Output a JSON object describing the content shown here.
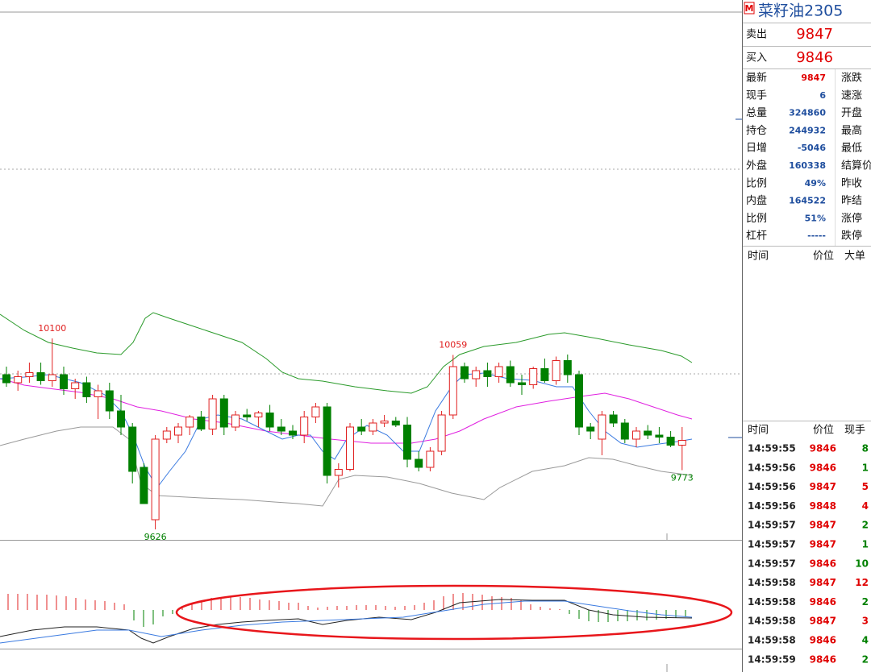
{
  "header": {
    "badge": "M",
    "title": "菜籽油2305"
  },
  "quote": {
    "ask": {
      "label": "卖出",
      "price": "9847"
    },
    "bid": {
      "label": "买入",
      "price": "9846"
    },
    "rows": [
      {
        "label": "最新",
        "value": "9847",
        "label2": "涨跌"
      },
      {
        "label": "现手",
        "value": "6",
        "label2": "速涨"
      },
      {
        "label": "总量",
        "value": "324860",
        "label2": "开盘"
      },
      {
        "label": "持仓",
        "value": "244932",
        "label2": "最高"
      },
      {
        "label": "日增",
        "value": "-5046",
        "label2": "最低"
      },
      {
        "label": "外盘",
        "value": "160338",
        "label2": "结算价"
      },
      {
        "label": "比例",
        "value": "49%",
        "label2": "昨收"
      },
      {
        "label": "内盘",
        "value": "164522",
        "label2": "昨结"
      },
      {
        "label": "比例",
        "value": "51%",
        "label2": "涨停"
      },
      {
        "label": "杠杆",
        "value": "-----",
        "label2": "跌停"
      }
    ]
  },
  "big_orders": {
    "columns": [
      "时间",
      "价位",
      "大单"
    ]
  },
  "trades": {
    "columns": [
      "时间",
      "价位",
      "现手"
    ],
    "rows": [
      {
        "time": "14:59:55",
        "price": "9846",
        "volume": "8",
        "color": "green"
      },
      {
        "time": "14:59:56",
        "price": "9846",
        "volume": "1",
        "color": "green"
      },
      {
        "time": "14:59:56",
        "price": "9847",
        "volume": "5",
        "color": "red"
      },
      {
        "time": "14:59:56",
        "price": "9848",
        "volume": "4",
        "color": "red"
      },
      {
        "time": "14:59:57",
        "price": "9847",
        "volume": "2",
        "color": "green"
      },
      {
        "time": "14:59:57",
        "price": "9847",
        "volume": "1",
        "color": "green"
      },
      {
        "time": "14:59:57",
        "price": "9846",
        "volume": "10",
        "color": "green"
      },
      {
        "time": "14:59:58",
        "price": "9847",
        "volume": "12",
        "color": "red"
      },
      {
        "time": "14:59:58",
        "price": "9846",
        "volume": "2",
        "color": "green"
      },
      {
        "time": "14:59:58",
        "price": "9847",
        "volume": "3",
        "color": "red"
      },
      {
        "time": "14:59:58",
        "price": "9846",
        "volume": "4",
        "color": "green"
      },
      {
        "time": "14:59:59",
        "price": "9846",
        "volume": "2",
        "color": "green"
      }
    ]
  },
  "chart": {
    "ylim": [
      9600,
      10910
    ],
    "candles": [
      [
        10010,
        10030,
        9980,
        9990
      ],
      [
        9990,
        10020,
        9970,
        10005
      ],
      [
        10005,
        10040,
        9990,
        10015
      ],
      [
        10015,
        10040,
        9985,
        9995
      ],
      [
        9995,
        10100,
        9980,
        10010
      ],
      [
        10010,
        10030,
        9960,
        9975
      ],
      [
        9975,
        10000,
        9950,
        9990
      ],
      [
        9990,
        10005,
        9940,
        9955
      ],
      [
        9955,
        9985,
        9900,
        9970
      ],
      [
        9970,
        9990,
        9900,
        9920
      ],
      [
        9920,
        9960,
        9860,
        9880
      ],
      [
        9880,
        9890,
        9740,
        9770
      ],
      [
        9780,
        9790,
        9690,
        9690
      ],
      [
        9650,
        9860,
        9626,
        9850
      ],
      [
        9850,
        9880,
        9840,
        9870
      ],
      [
        9860,
        9890,
        9840,
        9880
      ],
      [
        9880,
        9910,
        9860,
        9905
      ],
      [
        9905,
        9920,
        9870,
        9875
      ],
      [
        9875,
        9960,
        9860,
        9950
      ],
      [
        9950,
        9960,
        9860,
        9880
      ],
      [
        9880,
        9920,
        9870,
        9910
      ],
      [
        9910,
        9925,
        9895,
        9905
      ],
      [
        9905,
        9920,
        9880,
        9915
      ],
      [
        9915,
        9935,
        9870,
        9880
      ],
      [
        9880,
        9900,
        9860,
        9870
      ],
      [
        9870,
        9885,
        9850,
        9860
      ],
      [
        9860,
        9920,
        9840,
        9905
      ],
      [
        9905,
        9940,
        9890,
        9930
      ],
      [
        9930,
        9940,
        9740,
        9760
      ],
      [
        9760,
        9790,
        9730,
        9775
      ],
      [
        9775,
        9890,
        9770,
        9880
      ],
      [
        9880,
        9900,
        9860,
        9870
      ],
      [
        9870,
        9900,
        9860,
        9890
      ],
      [
        9890,
        9910,
        9880,
        9895
      ],
      [
        9895,
        9905,
        9880,
        9885
      ],
      [
        9885,
        9905,
        9780,
        9800
      ],
      [
        9800,
        9820,
        9770,
        9780
      ],
      [
        9780,
        9830,
        9770,
        9820
      ],
      [
        9820,
        9920,
        9810,
        9910
      ],
      [
        9910,
        10059,
        9900,
        10030
      ],
      [
        10030,
        10040,
        9990,
        10000
      ],
      [
        10000,
        10030,
        9980,
        10020
      ],
      [
        10020,
        10040,
        9980,
        10005
      ],
      [
        10005,
        10040,
        9990,
        10030
      ],
      [
        10030,
        10045,
        9980,
        9990
      ],
      [
        9990,
        10010,
        9960,
        9985
      ],
      [
        9985,
        10030,
        9975,
        10025
      ],
      [
        10025,
        10050,
        9990,
        9995
      ],
      [
        9995,
        10055,
        9985,
        10045
      ],
      [
        10045,
        10060,
        9990,
        10010
      ],
      [
        10010,
        10020,
        9860,
        9880
      ],
      [
        9880,
        9890,
        9850,
        9870
      ],
      [
        9850,
        9920,
        9810,
        9910
      ],
      [
        9910,
        9920,
        9880,
        9890
      ],
      [
        9890,
        9900,
        9840,
        9850
      ],
      [
        9850,
        9880,
        9830,
        9870
      ],
      [
        9870,
        9885,
        9850,
        9860
      ],
      [
        9860,
        9880,
        9840,
        9855
      ],
      [
        9855,
        9870,
        9830,
        9835
      ],
      [
        9835,
        9880,
        9773,
        9847
      ]
    ],
    "annotations": [
      10100,
      10059,
      9626,
      9773
    ]
  }
}
